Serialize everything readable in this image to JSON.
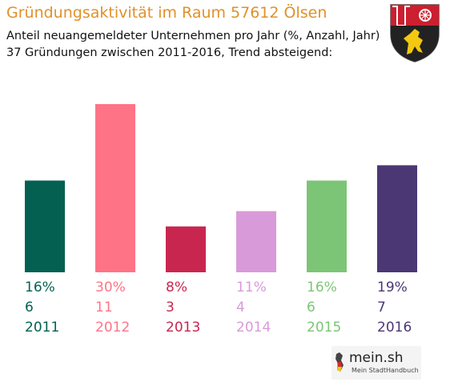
{
  "chart_data": {
    "type": "bar",
    "title": "Gründungsaktivität im Raum 57612 Ölsen",
    "subtitle_lines": [
      "Anteil neuangemeldeter Unternehmen pro Jahr (%, Anzahl, Jahr)",
      "37 Gründungen zwischen 2011-2016, Trend absteigend:"
    ],
    "categories": [
      "2011",
      "2012",
      "2013",
      "2014",
      "2015",
      "2016"
    ],
    "values": [
      6,
      11,
      3,
      4,
      6,
      7
    ],
    "percent_labels": [
      "16%",
      "30%",
      "8%",
      "11%",
      "16%",
      "19%"
    ],
    "colors": [
      "#046151",
      "#ff7386",
      "#c9264f",
      "#d99ad9",
      "#7cc576",
      "#4b3774"
    ],
    "ylim": [
      0,
      11
    ],
    "grid": false,
    "legend": "none"
  },
  "branding": {
    "logo_text": "mein.sh",
    "logo_tagline": "Mein StadtHandbuch",
    "crest_icon": "rheinland-pfalz-coat-of-arms-icon"
  }
}
